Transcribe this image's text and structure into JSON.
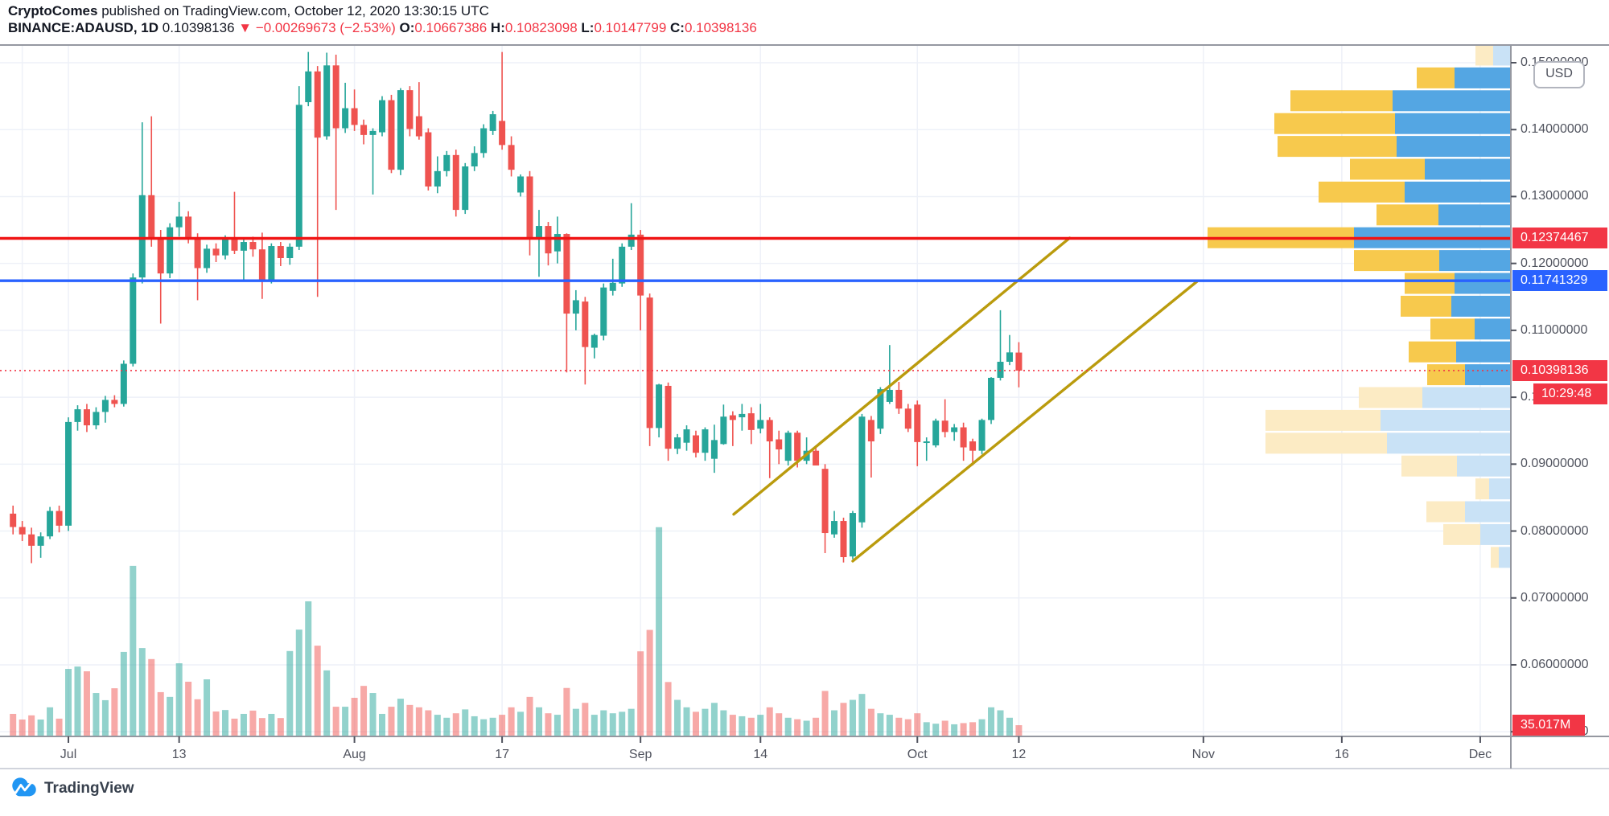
{
  "header": {
    "line1": [
      {
        "text": "CryptoComes",
        "style": "b"
      },
      {
        "text": " published on TradingView.com, October 12, 2020 13:30:15 UTC",
        "style": "n"
      }
    ],
    "line2": [
      {
        "text": "BINANCE:ADAUSD, 1D ",
        "style": "b"
      },
      {
        "text": "0.10398136 ",
        "style": "n"
      },
      {
        "text": "▼ −0.00269673 (−2.53%) ",
        "style": "red"
      },
      {
        "text": "O:",
        "style": "b"
      },
      {
        "text": "0.10667386 ",
        "style": "red"
      },
      {
        "text": "H:",
        "style": "b"
      },
      {
        "text": "0.10823098 ",
        "style": "red"
      },
      {
        "text": "L:",
        "style": "b"
      },
      {
        "text": "0.10147799 ",
        "style": "red"
      },
      {
        "text": "C:",
        "style": "b"
      },
      {
        "text": "0.10398136",
        "style": "red"
      }
    ]
  },
  "price_axis": {
    "currency": "USD",
    "ticks": [
      {
        "label": "0.15000000",
        "price": 0.15
      },
      {
        "label": "0.14000000",
        "price": 0.14
      },
      {
        "label": "0.13000000",
        "price": 0.13
      },
      {
        "label": "0.12000000",
        "price": 0.12
      },
      {
        "label": "0.11000000",
        "price": 0.11
      },
      {
        "label": "0.10000000",
        "price": 0.1
      },
      {
        "label": "0.09000000",
        "price": 0.09
      },
      {
        "label": "0.08000000",
        "price": 0.08
      },
      {
        "label": "0.07000000",
        "price": 0.07
      },
      {
        "label": "0.06000000",
        "price": 0.06
      },
      {
        "label": "0.05000000",
        "price": 0.05
      }
    ]
  },
  "time_axis": {
    "labels": [
      {
        "label": "Jul",
        "day": 6
      },
      {
        "label": "13",
        "day": 18
      },
      {
        "label": "Aug",
        "day": 37
      },
      {
        "label": "17",
        "day": 53
      },
      {
        "label": "Sep",
        "day": 68
      },
      {
        "label": "14",
        "day": 81
      },
      {
        "label": "Oct",
        "day": 98
      },
      {
        "label": "12",
        "day": 109
      },
      {
        "label": "Nov",
        "day": 129
      },
      {
        "label": "16",
        "day": 144
      },
      {
        "label": "Dec",
        "day": 159
      }
    ],
    "extra_grid_days": [
      1
    ]
  },
  "badges": {
    "resistance": {
      "label": "0.12374467",
      "price": 0.12374467
    },
    "support": {
      "label": "0.11741329",
      "price": 0.11741329
    },
    "last_price": {
      "label": "0.10398136",
      "price": 0.10398136
    },
    "countdown": {
      "label": "10:29:48"
    },
    "volume": {
      "label": "35.017M",
      "value_millions": 35.017
    }
  },
  "footer": {
    "brand": "TradingView"
  },
  "colors": {
    "up": "#26a69a",
    "down": "#ef5350",
    "vol_up": "rgba(38,166,154,0.5)",
    "vol_down": "rgba(239,83,80,0.5)",
    "profile_up": "#f7c94d",
    "profile_down": "#54a6e3",
    "profile_up_pale": "#fcebc4",
    "profile_down_pale": "#c9e2f6",
    "resistance_line": "#f01414",
    "support_line": "#2962ff",
    "last_price_line": "#f23645",
    "channel": "#ba9b0d",
    "grid": "#eef1f8",
    "frame": "#9598a1",
    "frame_light": "#d1d4dc"
  },
  "chart_data": {
    "type": "candlestick",
    "symbol": "BINANCE:ADAUSD",
    "interval": "1D",
    "start_date": "2020-06-25",
    "end_date": "2020-10-12",
    "ylim": [
      0.0493,
      0.1529
    ],
    "grid_on": true,
    "legend_position": "none",
    "levels": {
      "resistance": 0.12374467,
      "support": 0.11741329,
      "last": 0.10398136
    },
    "channel": {
      "upper": {
        "d1": 78.1,
        "p1": 0.0825,
        "d2": 114.5,
        "p2": 0.1238
      },
      "lower": {
        "d1": 91.0,
        "p1": 0.0755,
        "d2": 128.3,
        "p2": 0.1173
      }
    },
    "candles_format": [
      "open",
      "high",
      "low",
      "close",
      "volume_millions"
    ],
    "candles": [
      [
        0.0826,
        0.0838,
        0.0795,
        0.0806,
        73
      ],
      [
        0.0806,
        0.0815,
        0.0785,
        0.0795,
        54
      ],
      [
        0.0795,
        0.0805,
        0.0752,
        0.0778,
        68
      ],
      [
        0.0778,
        0.0798,
        0.076,
        0.0792,
        54
      ],
      [
        0.0792,
        0.0836,
        0.0788,
        0.083,
        95
      ],
      [
        0.083,
        0.0838,
        0.0798,
        0.0808,
        57
      ],
      [
        0.0808,
        0.097,
        0.08,
        0.0963,
        224
      ],
      [
        0.0963,
        0.0988,
        0.095,
        0.0982,
        232
      ],
      [
        0.0982,
        0.099,
        0.0948,
        0.0958,
        216
      ],
      [
        0.0958,
        0.0985,
        0.0952,
        0.0978,
        143
      ],
      [
        0.0978,
        0.1002,
        0.0962,
        0.0996,
        119
      ],
      [
        0.0996,
        0.1003,
        0.0985,
        0.099,
        159
      ],
      [
        0.099,
        0.1055,
        0.0986,
        0.105,
        281
      ],
      [
        0.105,
        0.1185,
        0.1046,
        0.1179,
        570
      ],
      [
        0.1179,
        0.1411,
        0.117,
        0.1302,
        294
      ],
      [
        0.1302,
        0.142,
        0.1225,
        0.1237,
        257
      ],
      [
        0.1237,
        0.125,
        0.111,
        0.1185,
        146
      ],
      [
        0.1185,
        0.126,
        0.1178,
        0.1254,
        130
      ],
      [
        0.1254,
        0.1292,
        0.124,
        0.127,
        243
      ],
      [
        0.127,
        0.1278,
        0.123,
        0.1237,
        181
      ],
      [
        0.1237,
        0.1245,
        0.1145,
        0.1193,
        122
      ],
      [
        0.1193,
        0.1228,
        0.1186,
        0.1222,
        189
      ],
      [
        0.1222,
        0.123,
        0.1202,
        0.1212,
        81
      ],
      [
        0.1212,
        0.1242,
        0.1206,
        0.1237,
        86
      ],
      [
        0.1237,
        0.1307,
        0.1214,
        0.1219,
        57
      ],
      [
        0.1219,
        0.1238,
        0.1174,
        0.1232,
        73
      ],
      [
        0.1232,
        0.124,
        0.121,
        0.1221,
        84
      ],
      [
        0.1221,
        0.1246,
        0.1147,
        0.1176,
        59
      ],
      [
        0.1176,
        0.123,
        0.117,
        0.1226,
        73
      ],
      [
        0.1226,
        0.1232,
        0.1196,
        0.1208,
        59
      ],
      [
        0.1208,
        0.123,
        0.1198,
        0.1225,
        284
      ],
      [
        0.1225,
        0.1465,
        0.122,
        0.1437,
        356
      ],
      [
        0.1441,
        0.1516,
        0.1435,
        0.1487,
        451
      ],
      [
        0.1487,
        0.1495,
        0.115,
        0.1388,
        302
      ],
      [
        0.139,
        0.1515,
        0.1385,
        0.1496,
        219
      ],
      [
        0.1496,
        0.1512,
        0.128,
        0.1402,
        97
      ],
      [
        0.1402,
        0.147,
        0.1395,
        0.1432,
        97
      ],
      [
        0.1432,
        0.146,
        0.1398,
        0.1407,
        127
      ],
      [
        0.1407,
        0.1415,
        0.1378,
        0.1392,
        167
      ],
      [
        0.1392,
        0.1402,
        0.1303,
        0.1398,
        143
      ],
      [
        0.1396,
        0.145,
        0.139,
        0.1444,
        73
      ],
      [
        0.1444,
        0.1452,
        0.1335,
        0.134,
        97
      ],
      [
        0.134,
        0.1462,
        0.1332,
        0.1459,
        124
      ],
      [
        0.1459,
        0.1465,
        0.139,
        0.1401,
        103
      ],
      [
        0.142,
        0.1471,
        0.1385,
        0.139,
        95
      ],
      [
        0.1396,
        0.1402,
        0.1309,
        0.1315,
        85
      ],
      [
        0.1315,
        0.136,
        0.1305,
        0.1338,
        70
      ],
      [
        0.1338,
        0.1368,
        0.133,
        0.1362,
        60
      ],
      [
        0.1362,
        0.137,
        0.127,
        0.128,
        75
      ],
      [
        0.128,
        0.135,
        0.1274,
        0.1345,
        88
      ],
      [
        0.1345,
        0.1375,
        0.1338,
        0.1365,
        65
      ],
      [
        0.1365,
        0.1408,
        0.1358,
        0.1402,
        55
      ],
      [
        0.1398,
        0.1428,
        0.1392,
        0.1423,
        60
      ],
      [
        0.1413,
        0.1516,
        0.137,
        0.1377,
        70
      ],
      [
        0.1377,
        0.139,
        0.133,
        0.134,
        95
      ],
      [
        0.1306,
        0.1333,
        0.13,
        0.133,
        80
      ],
      [
        0.133,
        0.1338,
        0.1212,
        0.1237,
        130
      ],
      [
        0.1237,
        0.128,
        0.118,
        0.1256,
        95
      ],
      [
        0.1256,
        0.1262,
        0.1197,
        0.1215,
        75
      ],
      [
        0.1218,
        0.127,
        0.12,
        0.1244,
        70
      ],
      [
        0.1244,
        0.1245,
        0.1037,
        0.1125,
        160
      ],
      [
        0.1125,
        0.116,
        0.11,
        0.1145,
        90
      ],
      [
        0.1143,
        0.115,
        0.1019,
        0.1075,
        110
      ],
      [
        0.1074,
        0.1095,
        0.1058,
        0.1093,
        70
      ],
      [
        0.1092,
        0.117,
        0.1085,
        0.1164,
        85
      ],
      [
        0.1159,
        0.1207,
        0.1152,
        0.1171,
        75
      ],
      [
        0.117,
        0.123,
        0.1165,
        0.1225,
        80
      ],
      [
        0.1225,
        0.129,
        0.122,
        0.1243,
        90
      ],
      [
        0.1243,
        0.125,
        0.11,
        0.1152,
        283
      ],
      [
        0.1149,
        0.1155,
        0.0927,
        0.0954,
        355
      ],
      [
        0.0954,
        0.102,
        0.094,
        0.1019,
        700
      ],
      [
        0.1017,
        0.1022,
        0.0905,
        0.0923,
        180
      ],
      [
        0.0923,
        0.0945,
        0.0915,
        0.094,
        120
      ],
      [
        0.0932,
        0.0958,
        0.092,
        0.0952,
        95
      ],
      [
        0.0943,
        0.095,
        0.091,
        0.0917,
        80
      ],
      [
        0.0917,
        0.0955,
        0.0905,
        0.0952,
        90
      ],
      [
        0.0908,
        0.0959,
        0.0887,
        0.0936,
        110
      ],
      [
        0.093,
        0.0989,
        0.0929,
        0.0971,
        85
      ],
      [
        0.0973,
        0.0979,
        0.0927,
        0.0966,
        70
      ],
      [
        0.097,
        0.099,
        0.095,
        0.0975,
        65
      ],
      [
        0.0976,
        0.0985,
        0.093,
        0.0951,
        60
      ],
      [
        0.0953,
        0.099,
        0.0946,
        0.0966,
        70
      ],
      [
        0.0966,
        0.097,
        0.0879,
        0.0934,
        95
      ],
      [
        0.0937,
        0.095,
        0.09,
        0.0922,
        75
      ],
      [
        0.0905,
        0.095,
        0.0898,
        0.0947,
        60
      ],
      [
        0.0947,
        0.095,
        0.0895,
        0.0905,
        55
      ],
      [
        0.0905,
        0.094,
        0.09,
        0.092,
        50
      ],
      [
        0.092,
        0.0928,
        0.0898,
        0.0898,
        60
      ],
      [
        0.0893,
        0.09,
        0.0767,
        0.0797,
        150
      ],
      [
        0.0795,
        0.083,
        0.079,
        0.0815,
        85
      ],
      [
        0.0815,
        0.082,
        0.0753,
        0.0761,
        110
      ],
      [
        0.0762,
        0.083,
        0.0758,
        0.0827,
        120
      ],
      [
        0.0813,
        0.0975,
        0.0805,
        0.0971,
        140
      ],
      [
        0.0966,
        0.0972,
        0.088,
        0.0934,
        90
      ],
      [
        0.0953,
        0.1015,
        0.0945,
        0.1012,
        75
      ],
      [
        0.0993,
        0.1078,
        0.099,
        0.1011,
        70
      ],
      [
        0.1011,
        0.1023,
        0.0975,
        0.0983,
        60
      ],
      [
        0.0983,
        0.099,
        0.0948,
        0.0953,
        55
      ],
      [
        0.0989,
        0.0995,
        0.0897,
        0.0933,
        75
      ],
      [
        0.0933,
        0.094,
        0.0905,
        0.0934,
        45
      ],
      [
        0.0928,
        0.0968,
        0.0925,
        0.0965,
        40
      ],
      [
        0.0965,
        0.0997,
        0.094,
        0.0948,
        50
      ],
      [
        0.0948,
        0.096,
        0.0935,
        0.0955,
        38
      ],
      [
        0.0955,
        0.0962,
        0.0905,
        0.0925,
        42
      ],
      [
        0.0934,
        0.0938,
        0.0898,
        0.092,
        45
      ],
      [
        0.092,
        0.0968,
        0.0915,
        0.0966,
        55
      ],
      [
        0.0966,
        0.103,
        0.096,
        0.1029,
        95
      ],
      [
        0.1029,
        0.113,
        0.1025,
        0.1053,
        85
      ],
      [
        0.1053,
        0.1093,
        0.1048,
        0.1067,
        60
      ],
      [
        0.10667386,
        0.10823098,
        0.10147799,
        0.10398136,
        35.017
      ]
    ],
    "volume_profile": {
      "description": "visible-range volume profile, rows top(0.1515) to bottom(0.0765); u=up-volume portion, v=total, pale=outside value area",
      "rows": [
        {
          "v": 44,
          "u": 22,
          "pale": true
        },
        {
          "v": 117,
          "u": 47,
          "pale": false
        },
        {
          "v": 274,
          "u": 127,
          "pale": false
        },
        {
          "v": 294,
          "u": 150,
          "pale": false
        },
        {
          "v": 290,
          "u": 148,
          "pale": false
        },
        {
          "v": 200,
          "u": 93,
          "pale": false
        },
        {
          "v": 239,
          "u": 107,
          "pale": false
        },
        {
          "v": 167,
          "u": 77,
          "pale": false
        },
        {
          "v": 377,
          "u": 182,
          "pale": false
        },
        {
          "v": 195,
          "u": 106,
          "pale": false
        },
        {
          "v": 132,
          "u": 62,
          "pale": false
        },
        {
          "v": 137,
          "u": 63,
          "pale": false
        },
        {
          "v": 100,
          "u": 55,
          "pale": false
        },
        {
          "v": 127,
          "u": 59,
          "pale": false
        },
        {
          "v": 104,
          "u": 47,
          "pale": false
        },
        {
          "v": 189,
          "u": 79,
          "pale": true
        },
        {
          "v": 305,
          "u": 143,
          "pale": true
        },
        {
          "v": 305,
          "u": 151,
          "pale": true
        },
        {
          "v": 136,
          "u": 69,
          "pale": true
        },
        {
          "v": 44,
          "u": 17,
          "pale": true
        },
        {
          "v": 105,
          "u": 48,
          "pale": true
        },
        {
          "v": 84,
          "u": 46,
          "pale": true
        },
        {
          "v": 25,
          "u": 10,
          "pale": true
        }
      ]
    }
  }
}
